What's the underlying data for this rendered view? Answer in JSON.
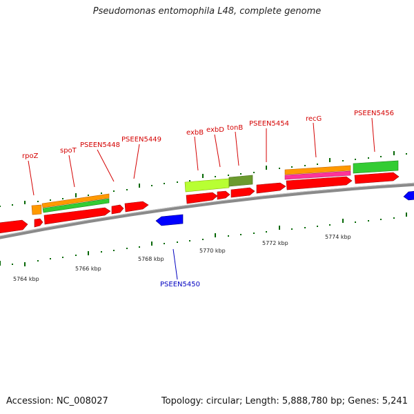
{
  "title": "Pseudomonas entomophila L48, complete genome",
  "footer": {
    "accession": "Accession: NC_008027",
    "summary": "Topology: circular; Length: 5,888,780 bp; Genes: 5,241"
  },
  "ruler_labels": [
    "5764 kbp",
    "5766 kbp",
    "5768 kbp",
    "5770 kbp",
    "5772 kbp",
    "5774 kbp"
  ],
  "gene_labels_top": [
    "rpoZ",
    "spoT",
    "PSEEN5448",
    "PSEEN5449",
    "exbB",
    "exbD",
    "tonB",
    "PSEEN5454",
    "recG",
    "PSEEN5456"
  ],
  "gene_labels_bottom": [
    "PSEEN5450"
  ],
  "colors": {
    "forward_gene": "#ff0000",
    "reverse_gene": "#0000ff",
    "backbone": "#888888",
    "ticks": "#006600",
    "label_red": "#d40000",
    "label_blue": "#0000c0"
  }
}
